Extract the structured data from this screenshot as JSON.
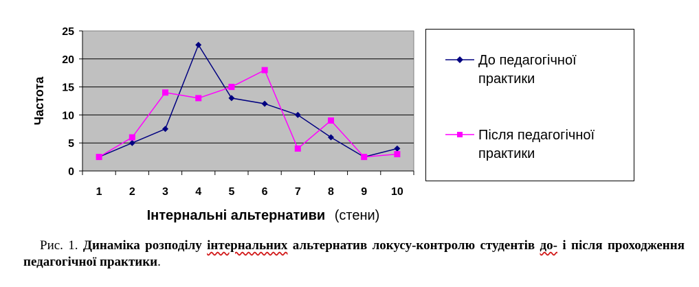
{
  "chart_data": {
    "type": "line",
    "categories": [
      "1",
      "2",
      "3",
      "4",
      "5",
      "6",
      "7",
      "8",
      "9",
      "10"
    ],
    "ylabel": "Частота",
    "xlabel_bold": "Інтернальні альтернативи",
    "xlabel_rest": "(стени)",
    "ylim": [
      0,
      25
    ],
    "yticks": [
      "0",
      "5",
      "10",
      "15",
      "20",
      "25"
    ],
    "grid": true,
    "plot_background": "#c0c0c0",
    "legend_position": "right",
    "series": [
      {
        "name": "До педагогічної практики",
        "color": "#000080",
        "marker": "diamond",
        "values": [
          2.5,
          5,
          7.5,
          22.5,
          13,
          12,
          10,
          6,
          2.5,
          4
        ]
      },
      {
        "name": "Після педагогічної практики",
        "color": "#ff00ff",
        "marker": "square",
        "values": [
          2.5,
          6,
          14,
          13,
          15,
          18,
          4,
          9,
          2.5,
          3
        ]
      }
    ]
  },
  "caption": {
    "prefix": "Рис. 1. ",
    "bold_before": "Динаміка розподілу ",
    "bold_wavy": "інтернальних",
    "bold_middle": " альтернатив локусу-контролю студентів ",
    "bold_wavy2": "до-",
    "bold_after": " і після проходження педагогічної практики",
    "suffix": "."
  }
}
